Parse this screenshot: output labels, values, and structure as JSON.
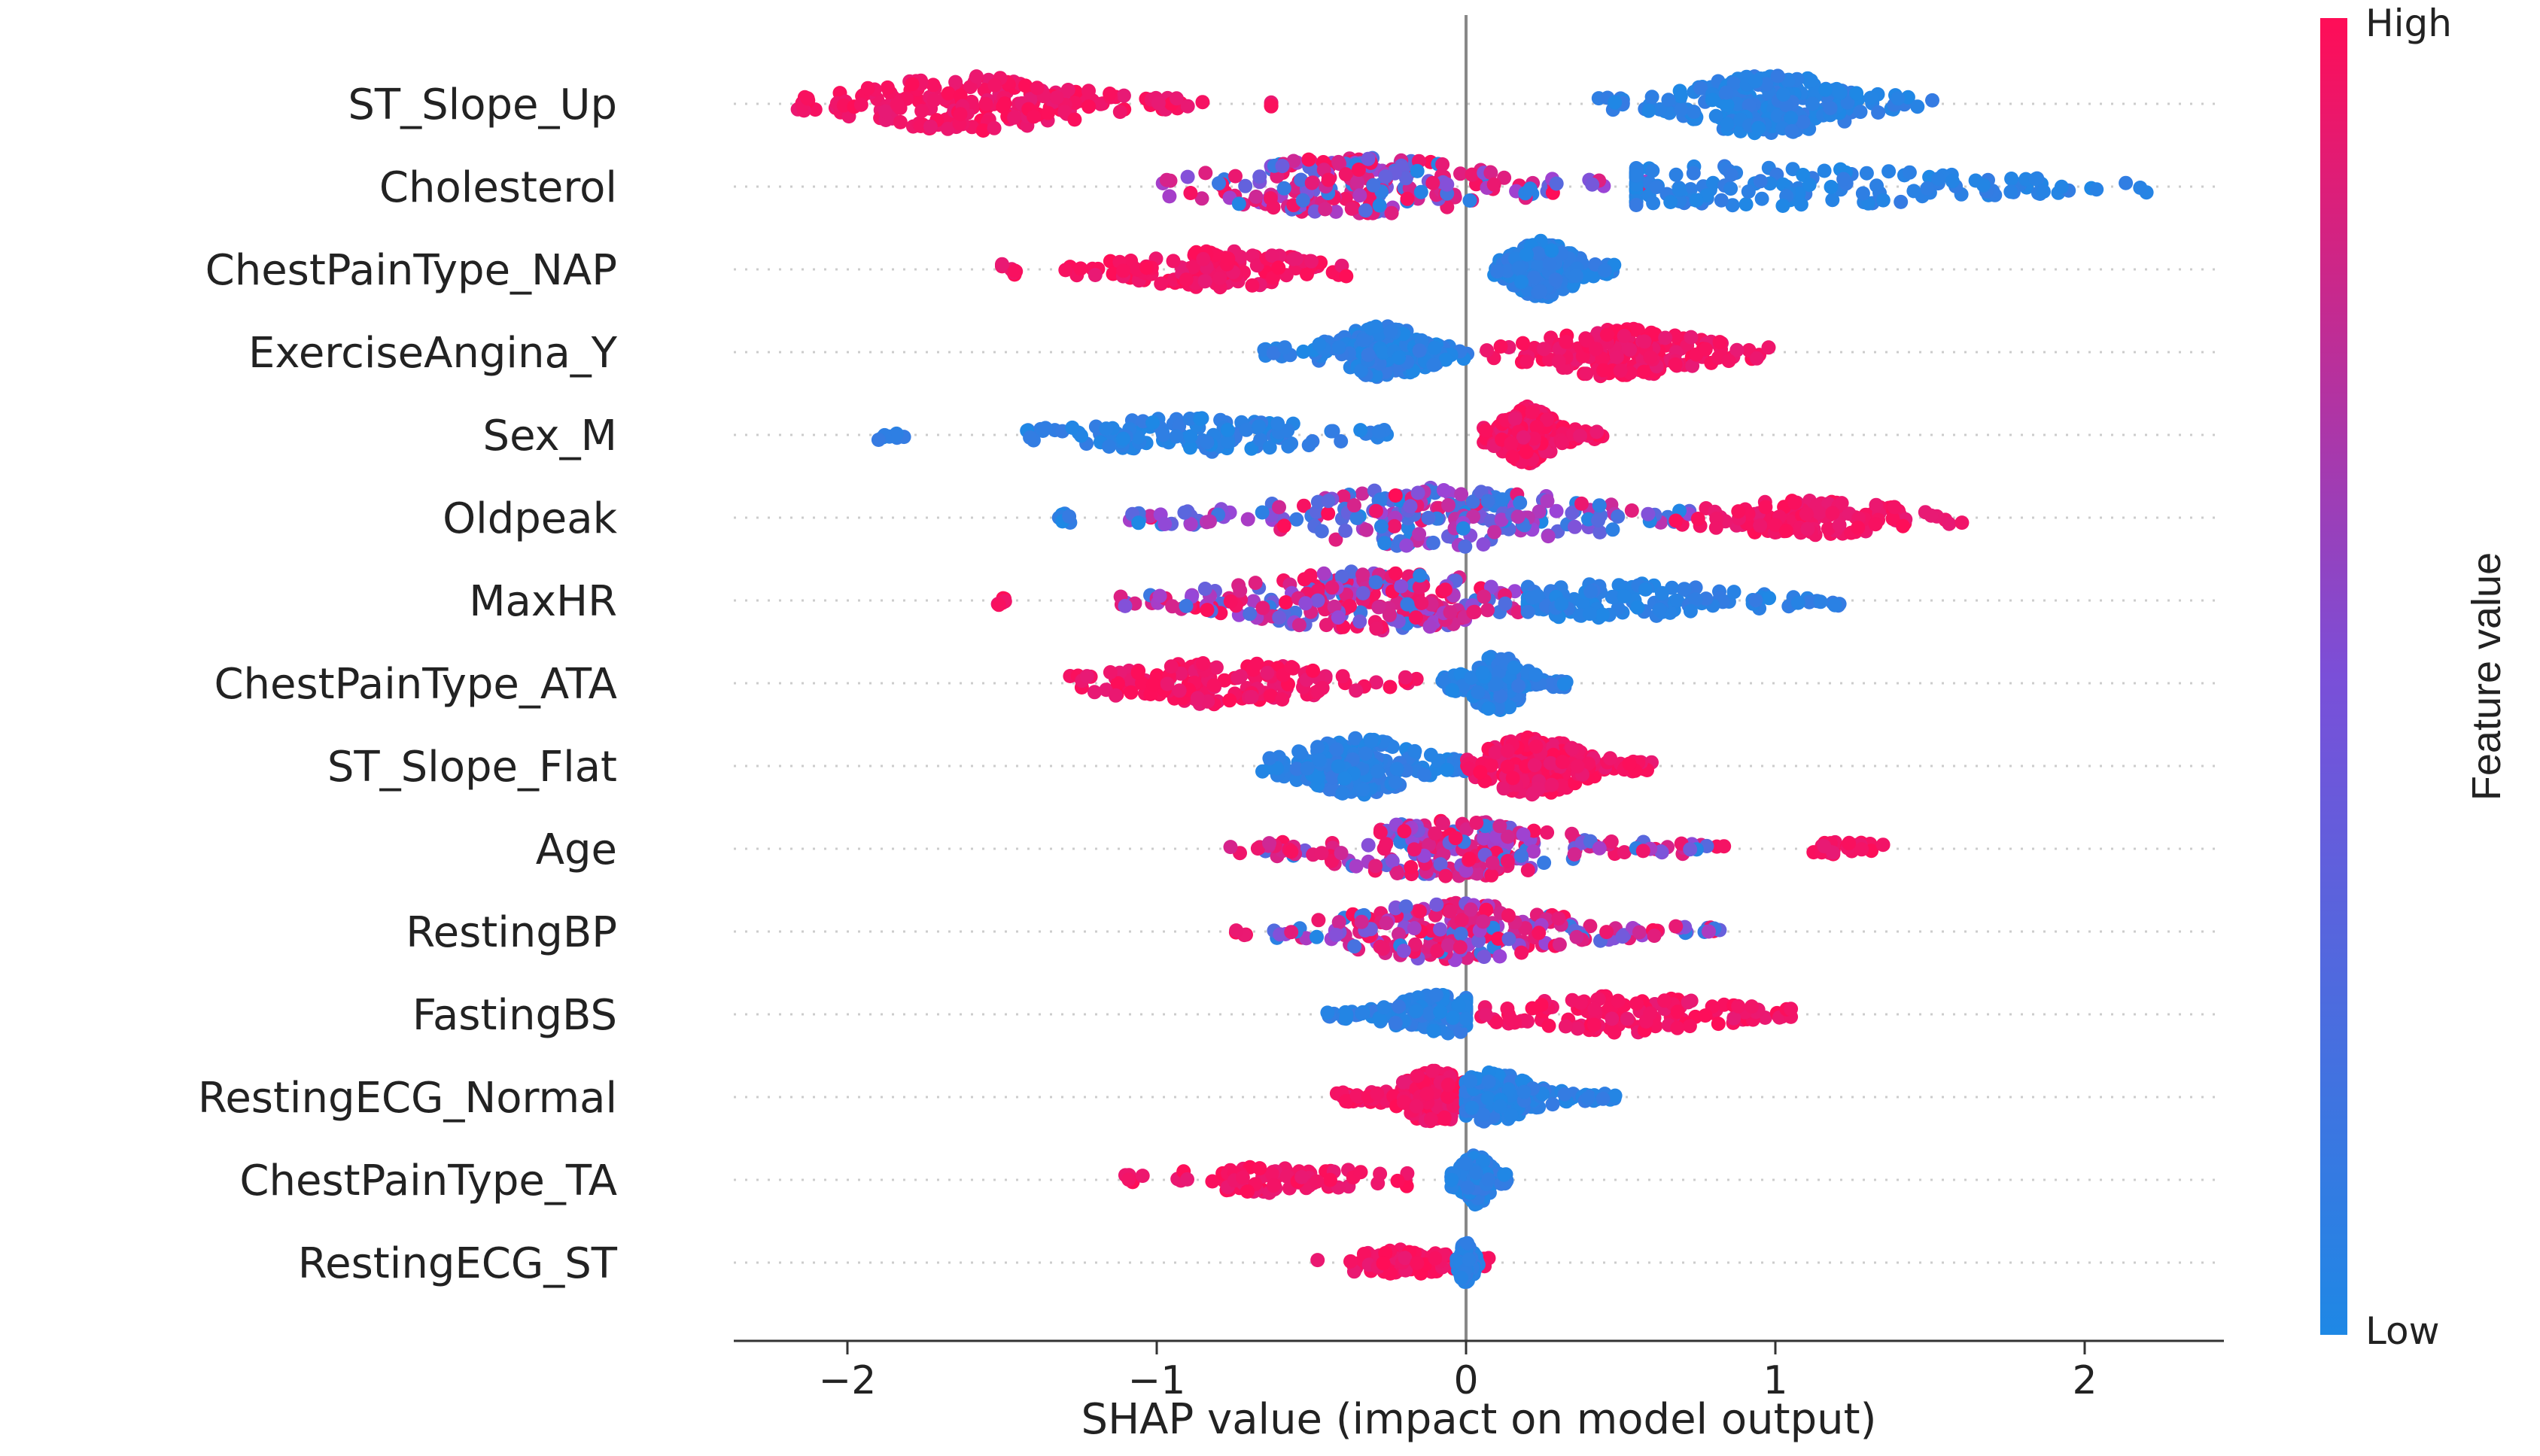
{
  "chart_data": {
    "type": "scatter",
    "subtype": "shap-beeswarm",
    "title": "",
    "xlabel": "SHAP value (impact on model output)",
    "ylabel": "",
    "xlim": [
      -2.35,
      2.45
    ],
    "xticks": [
      -2,
      -1,
      0,
      1,
      2
    ],
    "xtick_labels": [
      "−2",
      "−1",
      "0",
      "1",
      "2"
    ],
    "zero_line": 0,
    "colorbar": {
      "title": "Feature value",
      "high_label": "High",
      "low_label": "Low",
      "high_color": "#ff0d57",
      "mid_color": "#9b44d6",
      "low_color": "#1e88e5"
    },
    "features": [
      {
        "name": "ST_Slope_Up",
        "clusters": [
          {
            "min": -2.18,
            "max": -0.82,
            "center": -1.6,
            "spread": 0.28,
            "density": 0.9,
            "value": "high"
          },
          {
            "min": -0.63,
            "max": -0.63,
            "center": -0.63,
            "spread": 0.01,
            "density": 0.02,
            "value": "high"
          },
          {
            "min": 0.42,
            "max": 1.56,
            "center": 0.98,
            "spread": 0.22,
            "density": 1.0,
            "value": "low"
          }
        ]
      },
      {
        "name": "Cholesterol",
        "clusters": [
          {
            "min": -0.98,
            "max": 0.6,
            "center": -0.35,
            "spread": 0.35,
            "density": 1.0,
            "value": "mixed-high"
          },
          {
            "min": 0.55,
            "max": 2.25,
            "center": 0.9,
            "spread": 0.6,
            "density": 0.65,
            "value": "low"
          }
        ]
      },
      {
        "name": "ChestPainType_NAP",
        "clusters": [
          {
            "min": -1.5,
            "max": -1.45,
            "center": -1.48,
            "spread": 0.03,
            "density": 0.04,
            "value": "high"
          },
          {
            "min": -1.35,
            "max": -0.38,
            "center": -0.8,
            "spread": 0.22,
            "density": 0.55,
            "value": "high"
          },
          {
            "min": 0.08,
            "max": 0.48,
            "center": 0.25,
            "spread": 0.08,
            "density": 0.95,
            "value": "low"
          }
        ]
      },
      {
        "name": "ExerciseAngina_Y",
        "clusters": [
          {
            "min": -0.66,
            "max": 0.02,
            "center": -0.27,
            "spread": 0.12,
            "density": 0.85,
            "value": "low"
          },
          {
            "min": 0.02,
            "max": 1.0,
            "center": 0.5,
            "spread": 0.2,
            "density": 0.8,
            "value": "high"
          }
        ]
      },
      {
        "name": "Sex_M",
        "clusters": [
          {
            "min": -1.92,
            "max": -1.78,
            "center": -1.85,
            "spread": 0.05,
            "density": 0.04,
            "value": "low"
          },
          {
            "min": -1.42,
            "max": -0.25,
            "center": -0.85,
            "spread": 0.28,
            "density": 0.55,
            "value": "low"
          },
          {
            "min": 0.05,
            "max": 0.45,
            "center": 0.2,
            "spread": 0.07,
            "density": 0.95,
            "value": "high"
          }
        ]
      },
      {
        "name": "Oldpeak",
        "clusters": [
          {
            "min": -1.32,
            "max": -1.28,
            "center": -1.3,
            "spread": 0.02,
            "density": 0.03,
            "value": "low"
          },
          {
            "min": -1.1,
            "max": 0.75,
            "center": -0.1,
            "spread": 0.4,
            "density": 1.0,
            "value": "mixed-low"
          },
          {
            "min": 0.75,
            "max": 1.62,
            "center": 1.1,
            "spread": 0.25,
            "density": 0.5,
            "value": "high"
          }
        ]
      },
      {
        "name": "MaxHR",
        "clusters": [
          {
            "min": -1.53,
            "max": -1.47,
            "center": -1.5,
            "spread": 0.02,
            "density": 0.03,
            "value": "high"
          },
          {
            "min": -1.15,
            "max": 0.3,
            "center": -0.3,
            "spread": 0.35,
            "density": 1.0,
            "value": "mixed-high"
          },
          {
            "min": 0.2,
            "max": 1.22,
            "center": 0.45,
            "spread": 0.3,
            "density": 0.55,
            "value": "low"
          }
        ]
      },
      {
        "name": "ChestPainType_ATA",
        "clusters": [
          {
            "min": -1.28,
            "max": -0.15,
            "center": -0.8,
            "spread": 0.28,
            "density": 0.65,
            "value": "high"
          },
          {
            "min": -0.08,
            "max": 0.33,
            "center": 0.1,
            "spread": 0.07,
            "density": 0.9,
            "value": "low"
          }
        ]
      },
      {
        "name": "ST_Slope_Flat",
        "clusters": [
          {
            "min": -0.66,
            "max": 0.0,
            "center": -0.35,
            "spread": 0.15,
            "density": 0.95,
            "value": "low"
          },
          {
            "min": 0.0,
            "max": 0.6,
            "center": 0.22,
            "spread": 0.13,
            "density": 0.95,
            "value": "high"
          }
        ]
      },
      {
        "name": "Age",
        "clusters": [
          {
            "min": -0.78,
            "max": 0.85,
            "center": -0.05,
            "spread": 0.3,
            "density": 0.95,
            "value": "mixed-high"
          },
          {
            "min": 1.05,
            "max": 1.4,
            "center": 1.2,
            "spread": 0.08,
            "density": 0.12,
            "value": "high"
          }
        ]
      },
      {
        "name": "RestingBP",
        "clusters": [
          {
            "min": -0.75,
            "max": 0.82,
            "center": -0.05,
            "spread": 0.28,
            "density": 0.95,
            "value": "mixed-high"
          }
        ]
      },
      {
        "name": "FastingBS",
        "clusters": [
          {
            "min": -0.52,
            "max": 0.0,
            "center": -0.08,
            "spread": 0.12,
            "density": 0.6,
            "value": "low"
          },
          {
            "min": 0.05,
            "max": 1.05,
            "center": 0.5,
            "spread": 0.25,
            "density": 0.55,
            "value": "high"
          }
        ]
      },
      {
        "name": "RestingECG_Normal",
        "clusters": [
          {
            "min": -0.42,
            "max": 0.0,
            "center": -0.1,
            "spread": 0.09,
            "density": 0.85,
            "value": "high"
          },
          {
            "min": 0.0,
            "max": 0.5,
            "center": 0.08,
            "spread": 0.1,
            "density": 0.8,
            "value": "low"
          }
        ]
      },
      {
        "name": "ChestPainType_TA",
        "clusters": [
          {
            "min": -1.12,
            "max": -0.18,
            "center": -0.6,
            "spread": 0.25,
            "density": 0.35,
            "value": "high"
          },
          {
            "min": -0.05,
            "max": 0.16,
            "center": 0.03,
            "spread": 0.04,
            "density": 0.8,
            "value": "low"
          }
        ]
      },
      {
        "name": "RestingECG_ST",
        "clusters": [
          {
            "min": -0.48,
            "max": 0.12,
            "center": -0.2,
            "spread": 0.15,
            "density": 0.35,
            "value": "high"
          },
          {
            "min": -0.03,
            "max": 0.04,
            "center": 0.0,
            "spread": 0.02,
            "density": 0.6,
            "value": "low"
          }
        ]
      }
    ]
  }
}
